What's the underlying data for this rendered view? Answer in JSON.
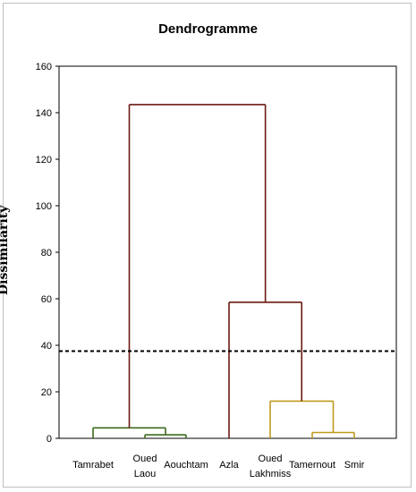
{
  "chart_data": {
    "type": "dendrogram",
    "title": "Dendrogramme",
    "ylabel": "Dissimilarity",
    "xlabel": "",
    "ylim": [
      0,
      160
    ],
    "yticks": [
      0,
      20,
      40,
      60,
      80,
      100,
      120,
      140,
      160
    ],
    "grid": false,
    "leaves": [
      {
        "label": [
          "Tamrabet"
        ],
        "cluster": "green"
      },
      {
        "label": [
          "Oued",
          "Laou"
        ],
        "cluster": "green"
      },
      {
        "label": [
          "Aouchtam"
        ],
        "cluster": "green"
      },
      {
        "label": [
          "Azla"
        ],
        "cluster": "brown"
      },
      {
        "label": [
          "Oued",
          "Lakhmiss"
        ],
        "cluster": "gold"
      },
      {
        "label": [
          "Tamernout"
        ],
        "cluster": "gold"
      },
      {
        "label": [
          "Smir"
        ],
        "cluster": "gold"
      }
    ],
    "merges": [
      {
        "left": "L1",
        "right": "L2",
        "height": 1.5,
        "color": "green"
      },
      {
        "left": "L0",
        "right": "M0",
        "height": 4.5,
        "color": "green"
      },
      {
        "left": "L5",
        "right": "L6",
        "height": 2.5,
        "color": "gold"
      },
      {
        "left": "L4",
        "right": "M2",
        "height": 16,
        "color": "gold"
      },
      {
        "left": "L3",
        "right": "M3",
        "height": 58.5,
        "color": "brown"
      },
      {
        "left": "M1",
        "right": "M4",
        "height": 143.5,
        "color": "brown"
      }
    ],
    "threshold": 37.5,
    "colors": {
      "green": "#3d6b1e",
      "brown": "#6b1a10",
      "gold": "#c09a1e"
    }
  }
}
